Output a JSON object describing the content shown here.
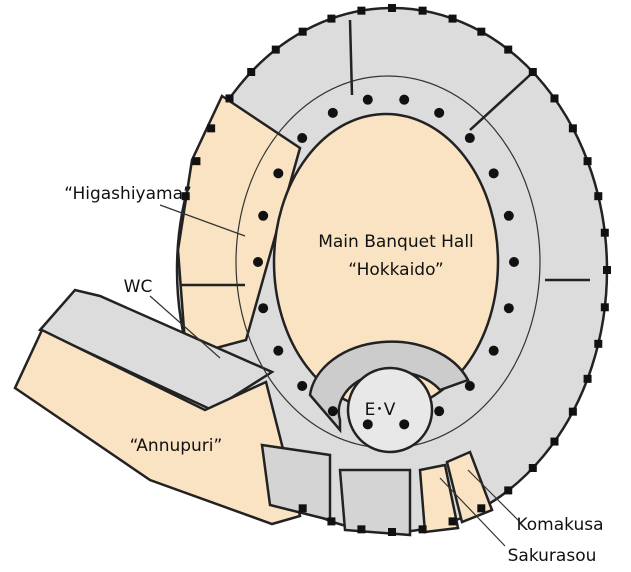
{
  "labels": {
    "higashiyama": "“Higashiyama”",
    "main_hall": "Main Banquet Hall",
    "hokkaido": "“Hokkaido”",
    "wc": "WC",
    "annupuri": "“Annupuri”",
    "ev": "E･V",
    "komakusa": "Komakusa",
    "sakurasou": "Sakurasou"
  }
}
